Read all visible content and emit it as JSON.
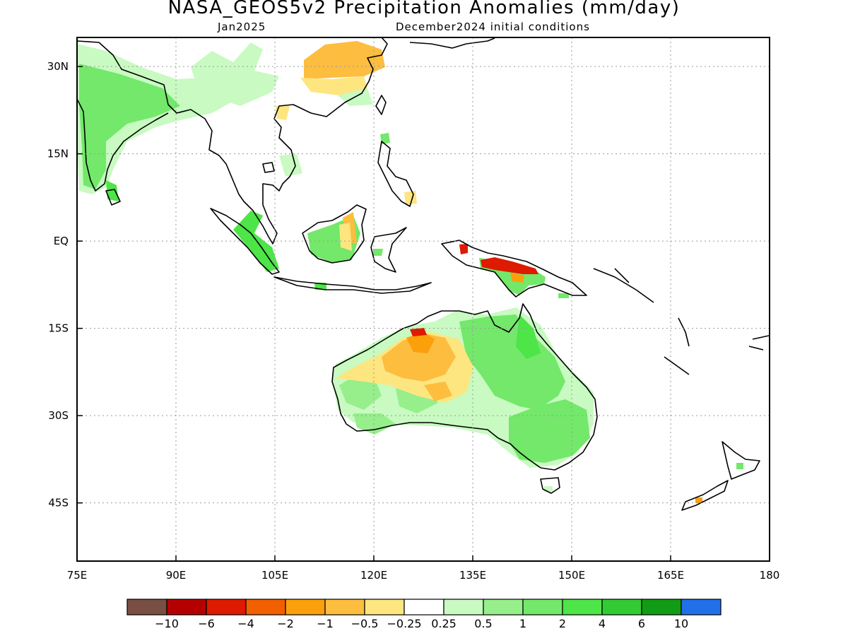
{
  "header": {
    "title": "NASA_GEOS5v2 Precipitation Anomalies (mm/day)",
    "subtitle_left": "Jan2025",
    "subtitle_right": "December2024 initial conditions"
  },
  "map": {
    "lon_range": [
      75,
      180
    ],
    "lat_range": [
      -55,
      35
    ],
    "y_ticks": [
      {
        "value": 30,
        "label": "30N"
      },
      {
        "value": 15,
        "label": "15N"
      },
      {
        "value": 0,
        "label": "EQ"
      },
      {
        "value": -15,
        "label": "15S"
      },
      {
        "value": -30,
        "label": "30S"
      },
      {
        "value": -45,
        "label": "45S"
      }
    ],
    "x_ticks": [
      {
        "value": 75,
        "label": "75E"
      },
      {
        "value": 90,
        "label": "90E"
      },
      {
        "value": 105,
        "label": "105E"
      },
      {
        "value": 120,
        "label": "120E"
      },
      {
        "value": 135,
        "label": "135E"
      },
      {
        "value": 150,
        "label": "150E"
      },
      {
        "value": 165,
        "label": "165E"
      },
      {
        "value": 180,
        "label": "180"
      }
    ]
  },
  "colorbar": {
    "colors": [
      "#7a4f43",
      "#b40000",
      "#de1a00",
      "#f25f00",
      "#fb9f0a",
      "#fdbd3f",
      "#fde680",
      "#ffffff",
      "#c8fac2",
      "#96ef8b",
      "#73e86a",
      "#4de547",
      "#32cb33",
      "#129c16",
      "#2270e8"
    ],
    "labels": [
      "−10",
      "−6",
      "−4",
      "−2",
      "−1",
      "−0.5",
      "−0.25",
      "0.25",
      "0.5",
      "1",
      "2",
      "4",
      "6",
      "10"
    ]
  },
  "legend_colors": {
    "light_green": "#c8fac2",
    "green": "#73e86a",
    "bright_green": "#4de547",
    "light_orange": "#fde680",
    "orange": "#fdbd3f",
    "dark_orange": "#fb9f0a",
    "red": "#de1a00",
    "dark_red": "#b40000"
  }
}
